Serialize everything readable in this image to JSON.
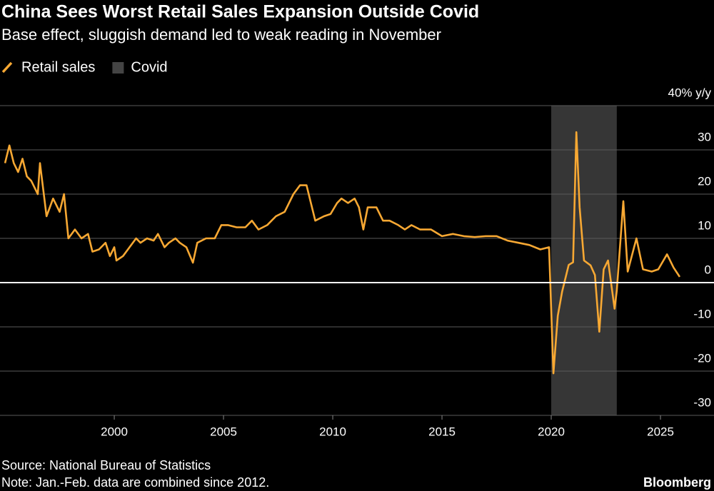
{
  "chart_data": {
    "type": "line",
    "title": "China Sees Worst Retail Sales Expansion Outside Covid",
    "subtitle": "Base effect, sluggish demand led to weak reading in November",
    "source": "Source: National Bureau of Statistics",
    "note": "Note: Jan.-Feb. data are combined since 2012.",
    "brand": "Bloomberg",
    "x": [
      1995.0,
      1995.2,
      1995.4,
      1995.6,
      1995.8,
      1996.0,
      1996.2,
      1996.5,
      1996.6,
      1996.9,
      1997.2,
      1997.5,
      1997.7,
      1997.9,
      1998.2,
      1998.5,
      1998.8,
      1999.0,
      1999.3,
      1999.6,
      1999.8,
      2000.0,
      2000.1,
      2000.4,
      2000.7,
      2001.0,
      2001.2,
      2001.5,
      2001.8,
      2002.0,
      2002.3,
      2002.5,
      2002.8,
      2003.0,
      2003.3,
      2003.6,
      2003.8,
      2004.2,
      2004.6,
      2004.9,
      2005.2,
      2005.6,
      2006.0,
      2006.3,
      2006.6,
      2007.0,
      2007.4,
      2007.8,
      2008.2,
      2008.5,
      2008.8,
      2009.0,
      2009.2,
      2009.6,
      2009.9,
      2010.2,
      2010.4,
      2010.7,
      2011.0,
      2011.2,
      2011.4,
      2011.6,
      2012.0,
      2012.3,
      2012.6,
      2013.0,
      2013.3,
      2013.6,
      2014.0,
      2014.5,
      2015.0,
      2015.5,
      2016.0,
      2016.5,
      2017.0,
      2017.5,
      2018.0,
      2018.5,
      2019.0,
      2019.5,
      2019.9,
      2020.1,
      2020.3,
      2020.5,
      2020.8,
      2021.0,
      2021.15,
      2021.3,
      2021.5,
      2021.8,
      2022.0,
      2022.2,
      2022.4,
      2022.6,
      2022.9,
      2023.0,
      2023.3,
      2023.5,
      2023.9,
      2024.2,
      2024.6,
      2024.9,
      2025.3,
      2025.6,
      2025.88
    ],
    "series": [
      {
        "name": "Retail sales",
        "color": "#f7a833",
        "values": [
          27,
          31,
          27,
          25,
          28,
          24,
          23,
          20,
          27,
          15,
          19,
          16,
          20,
          10,
          12,
          10,
          11,
          7,
          7.5,
          9,
          6,
          8,
          5,
          6,
          8,
          10,
          9,
          10,
          9.5,
          11,
          8,
          9,
          10,
          9,
          8,
          4.5,
          9,
          10,
          10,
          13,
          13,
          12.5,
          12.5,
          14,
          12,
          13,
          15,
          16,
          20,
          22,
          22,
          18,
          14,
          15,
          15.5,
          18,
          19,
          18,
          19,
          17,
          12,
          17,
          17,
          14,
          14,
          13,
          12,
          13,
          12,
          12,
          10.5,
          11,
          10.5,
          10.3,
          10.5,
          10.5,
          9.5,
          9,
          8.5,
          7.5,
          8,
          -20.5,
          -7.5,
          -2,
          4,
          4.6,
          34,
          17,
          5,
          3.9,
          1.7,
          -11.1,
          3,
          5,
          -5.9,
          -1.8,
          18.4,
          2.5,
          10,
          3,
          2.5,
          3,
          6.4,
          3.4,
          1.3
        ]
      }
    ],
    "shaded": [
      {
        "name": "Covid",
        "start": 2020.0,
        "end": 2023.0,
        "color": "#363636"
      }
    ],
    "xlim": [
      1994.77,
      2027.45
    ],
    "xticks": [
      2000,
      2005,
      2010,
      2015,
      2020,
      2025
    ],
    "ylim": [
      -30,
      40
    ],
    "yticks": [
      -30,
      -20,
      -10,
      0,
      10,
      20,
      30,
      {
        "value": 40,
        "label": "40% y/y"
      }
    ],
    "grid": true,
    "zero_line": true
  }
}
